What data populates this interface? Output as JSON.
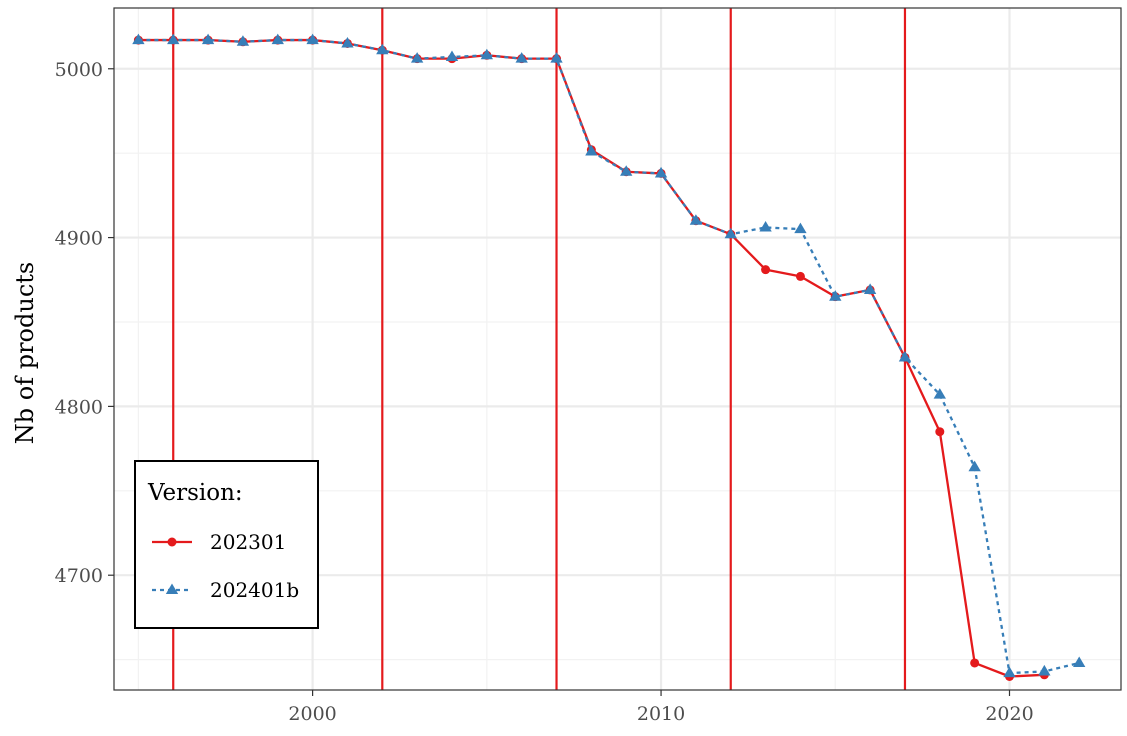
{
  "chart_data": {
    "type": "line",
    "title": "",
    "xlabel": "",
    "ylabel": "Nb of products",
    "xlim": [
      1994.3,
      2023.2
    ],
    "ylim": [
      4632,
      5036
    ],
    "x_ticks": [
      2000,
      2010,
      2020
    ],
    "x_tick_labels": [
      "2000",
      "2010",
      "2020"
    ],
    "y_ticks": [
      4700,
      4800,
      4900,
      5000
    ],
    "y_tick_labels": [
      "4700",
      "4800",
      "4900",
      "5000"
    ],
    "grid": true,
    "vertical_reference_lines": [
      1996,
      2002,
      2007,
      2012,
      2017
    ],
    "reference_line_color": "#e41a1c",
    "legend": {
      "title": "Version:",
      "placement": "bottom-left"
    },
    "series": [
      {
        "name": "202301",
        "color": "#e41a1c",
        "marker": "circle",
        "line_style": "solid",
        "x": [
          1995,
          1996,
          1997,
          1998,
          1999,
          2000,
          2001,
          2002,
          2003,
          2004,
          2005,
          2006,
          2007,
          2008,
          2009,
          2010,
          2011,
          2012,
          2013,
          2014,
          2015,
          2016,
          2017,
          2018,
          2019,
          2020,
          2021
        ],
        "values": [
          5017,
          5017,
          5017,
          5016,
          5017,
          5017,
          5015,
          5011,
          5006,
          5006,
          5008,
          5006,
          5006,
          4952,
          4939,
          4938,
          4910,
          4902,
          4881,
          4877,
          4865,
          4869,
          4829,
          4785,
          4648,
          4640,
          4641
        ]
      },
      {
        "name": "202401b",
        "color": "#377eb8",
        "marker": "triangle",
        "line_style": "dashed",
        "x": [
          1995,
          1996,
          1997,
          1998,
          1999,
          2000,
          2001,
          2002,
          2003,
          2004,
          2005,
          2006,
          2007,
          2008,
          2009,
          2010,
          2011,
          2012,
          2013,
          2014,
          2015,
          2016,
          2017,
          2018,
          2019,
          2020,
          2021,
          2022
        ],
        "values": [
          5017,
          5017,
          5017,
          5016,
          5017,
          5017,
          5015,
          5011,
          5006,
          5007,
          5008,
          5006,
          5006,
          4951,
          4939,
          4938,
          4910,
          4902,
          4906,
          4905,
          4865,
          4869,
          4829,
          4807,
          4764,
          4642,
          4643,
          4648
        ]
      }
    ]
  }
}
